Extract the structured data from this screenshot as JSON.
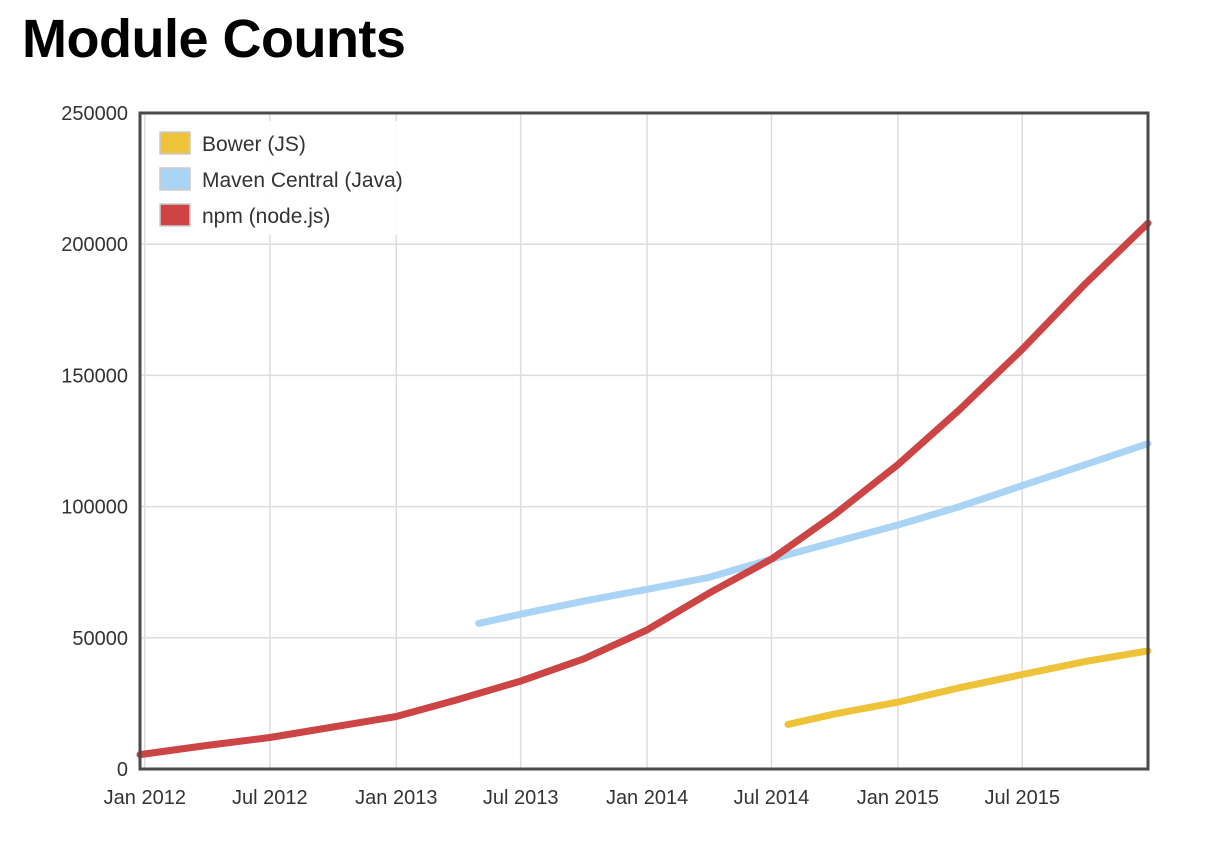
{
  "page": {
    "title": "Module Counts"
  },
  "chart_data": {
    "type": "line",
    "title": "Module Counts",
    "xlabel": "",
    "ylabel": "",
    "x_unit": "date",
    "xlim": [
      "2011-12-25",
      "2015-12-31"
    ],
    "ylim": [
      0,
      250000
    ],
    "x_ticks": [
      {
        "date": "2012-01-01",
        "label": "Jan 2012"
      },
      {
        "date": "2012-07-01",
        "label": "Jul 2012"
      },
      {
        "date": "2013-01-01",
        "label": "Jan 2013"
      },
      {
        "date": "2013-07-01",
        "label": "Jul 2013"
      },
      {
        "date": "2014-01-01",
        "label": "Jan 2014"
      },
      {
        "date": "2014-07-01",
        "label": "Jul 2014"
      },
      {
        "date": "2015-01-01",
        "label": "Jan 2015"
      },
      {
        "date": "2015-07-01",
        "label": "Jul 2015"
      }
    ],
    "y_ticks": [
      0,
      50000,
      100000,
      150000,
      200000,
      250000
    ],
    "grid": true,
    "legend": "top-left",
    "series": [
      {
        "name": "Bower (JS)",
        "color": "#eec33a",
        "points": [
          [
            "2014-07-25",
            17000
          ],
          [
            "2014-10-01",
            21000
          ],
          [
            "2015-01-01",
            25500
          ],
          [
            "2015-04-01",
            31000
          ],
          [
            "2015-07-01",
            36000
          ],
          [
            "2015-10-01",
            41000
          ],
          [
            "2015-12-31",
            45000
          ]
        ]
      },
      {
        "name": "Maven Central (Java)",
        "color": "#a9d4f5",
        "points": [
          [
            "2013-05-01",
            55500
          ],
          [
            "2013-07-01",
            59000
          ],
          [
            "2013-10-01",
            64000
          ],
          [
            "2014-01-01",
            68500
          ],
          [
            "2014-04-01",
            73000
          ],
          [
            "2014-07-01",
            80000
          ],
          [
            "2014-10-01",
            86500
          ],
          [
            "2015-01-01",
            93000
          ],
          [
            "2015-04-01",
            100000
          ],
          [
            "2015-07-01",
            108000
          ],
          [
            "2015-10-01",
            116000
          ],
          [
            "2015-12-31",
            124000
          ]
        ]
      },
      {
        "name": "npm (node.js)",
        "color": "#cc4444",
        "points": [
          [
            "2011-12-25",
            5500
          ],
          [
            "2012-04-01",
            9000
          ],
          [
            "2012-07-01",
            12000
          ],
          [
            "2012-10-01",
            16000
          ],
          [
            "2013-01-01",
            20000
          ],
          [
            "2013-04-01",
            26500
          ],
          [
            "2013-07-01",
            33500
          ],
          [
            "2013-10-01",
            42000
          ],
          [
            "2014-01-01",
            53000
          ],
          [
            "2014-04-01",
            67000
          ],
          [
            "2014-07-01",
            80000
          ],
          [
            "2014-10-01",
            97000
          ],
          [
            "2015-01-01",
            116000
          ],
          [
            "2015-04-01",
            137000
          ],
          [
            "2015-07-01",
            160000
          ],
          [
            "2015-10-01",
            185000
          ],
          [
            "2015-12-31",
            208000
          ]
        ]
      }
    ]
  }
}
